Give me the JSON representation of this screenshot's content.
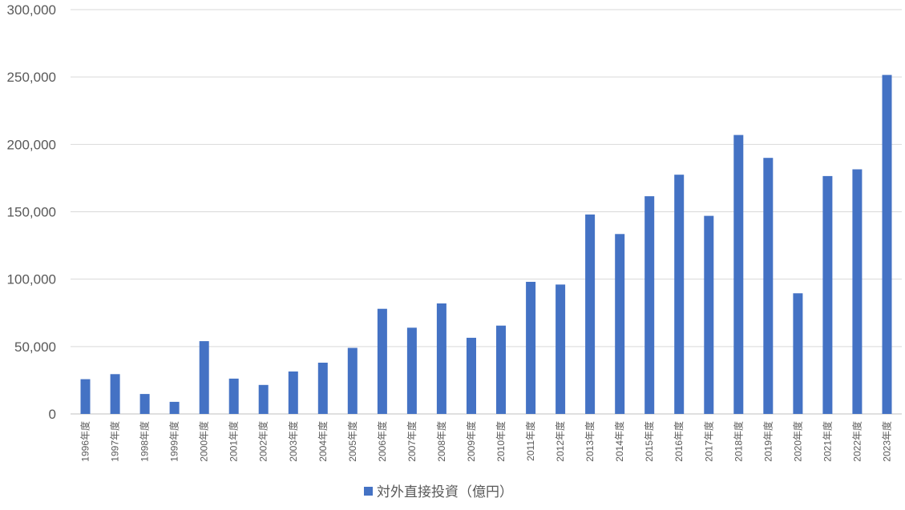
{
  "chart_data": {
    "type": "bar",
    "categories": [
      "1996年度",
      "1997年度",
      "1998年度",
      "1999年度",
      "2000年度",
      "2001年度",
      "2002年度",
      "2003年度",
      "2004年度",
      "2005年度",
      "2006年度",
      "2007年度",
      "2008年度",
      "2009年度",
      "2010年度",
      "2011年度",
      "2012年度",
      "2013年度",
      "2014年度",
      "2015年度",
      "2016年度",
      "2017年度",
      "2018年度",
      "2019年度",
      "2020年度",
      "2021年度",
      "2022年度",
      "2023年度"
    ],
    "series": [
      {
        "name": "対外直接投資（億円）",
        "color": "#4472C4",
        "values": [
          25800,
          29500,
          14800,
          9000,
          54000,
          26200,
          21500,
          31500,
          38000,
          49000,
          78000,
          64000,
          82000,
          56500,
          65500,
          98000,
          96000,
          148000,
          133500,
          161500,
          177500,
          147000,
          207000,
          190000,
          89500,
          176500,
          181500,
          251500
        ]
      }
    ],
    "ylim": [
      0,
      300000
    ],
    "yticks": [
      0,
      50000,
      100000,
      150000,
      200000,
      250000,
      300000
    ],
    "ytick_labels": [
      "0",
      "50,000",
      "100,000",
      "150,000",
      "200,000",
      "250,000",
      "300,000"
    ],
    "grid": true,
    "legend_position": "bottom"
  }
}
